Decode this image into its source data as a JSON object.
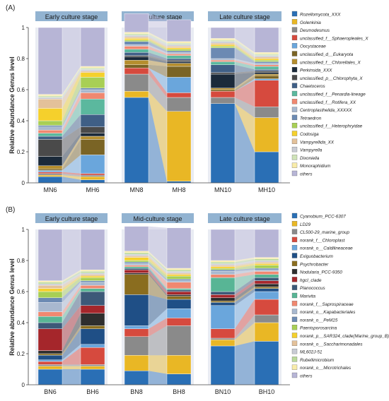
{
  "chart_data": [
    {
      "panel_label": "(A)",
      "type": "bar",
      "stacked": true,
      "ylabel": "Relative abundance Genus level",
      "ylim": [
        0,
        1
      ],
      "yticks": [
        "0",
        "0.2",
        "0.4",
        "0.6",
        "0.8",
        "1"
      ],
      "stages": [
        "Early culture stage",
        "Mid-culture stage",
        "Late culture stage"
      ],
      "categories": [
        "MN6",
        "MH6",
        "MN8",
        "MH8",
        "MN10",
        "MH10"
      ],
      "series": [
        {
          "name": "Rozellomycota_XXX",
          "color": "#2a6fb5",
          "values": [
            0.04,
            0.02,
            0.55,
            0.01,
            0.51,
            0.2
          ]
        },
        {
          "name": "Golenkinia",
          "color": "#e9b725",
          "values": [
            0.01,
            0.02,
            0.04,
            0.45,
            0.0,
            0.22
          ]
        },
        {
          "name": "Desmodesmus",
          "color": "#8a8a8a",
          "values": [
            0.01,
            0.01,
            0.11,
            0.09,
            0.04,
            0.07
          ]
        },
        {
          "name": "unclassified_f__Sphaeropleales_X",
          "color": "#d64a3e",
          "values": [
            0.01,
            0.01,
            0.04,
            0.03,
            0.04,
            0.17
          ]
        },
        {
          "name": "Oocystaceae",
          "color": "#6aa6dc",
          "values": [
            0.01,
            0.12,
            0.0,
            0.1,
            0.0,
            0.01
          ]
        },
        {
          "name": "unclassified_d__Eukaryota",
          "color": "#7a6425",
          "values": [
            0.01,
            0.1,
            0.02,
            0.07,
            0.01,
            0.02
          ]
        },
        {
          "name": "unclassified_f__Chlorellales_X",
          "color": "#b58e2e",
          "values": [
            0.02,
            0.02,
            0.03,
            0.02,
            0.01,
            0.01
          ]
        },
        {
          "name": "Perkinsida_XXX",
          "color": "#1b2a3a",
          "values": [
            0.06,
            0.02,
            0.02,
            0.01,
            0.09,
            0.01
          ]
        },
        {
          "name": "unclassified_p__Chlorophyta_X",
          "color": "#4a4a4a",
          "values": [
            0.11,
            0.04,
            0.01,
            0.01,
            0.01,
            0.01
          ]
        },
        {
          "name": "Chaetoceros",
          "color": "#3f5f86",
          "values": [
            0.02,
            0.08,
            0.02,
            0.01,
            0.05,
            0.01
          ]
        },
        {
          "name": "unclassified_f__Penardia-lineage",
          "color": "#5bb89e",
          "values": [
            0.02,
            0.1,
            0.02,
            0.02,
            0.02,
            0.02
          ]
        },
        {
          "name": "unclassified_f__Rotifera_XX",
          "color": "#f08870",
          "values": [
            0.02,
            0.04,
            0.02,
            0.01,
            0.01,
            0.01
          ]
        },
        {
          "name": "Centroplasthelida_XXXXX",
          "color": "#a8b8cf",
          "values": [
            0.02,
            0.02,
            0.01,
            0.01,
            0.01,
            0.01
          ]
        },
        {
          "name": "Tetraedron",
          "color": "#6c8ab3",
          "values": [
            0.01,
            0.01,
            0.02,
            0.01,
            0.07,
            0.01
          ]
        },
        {
          "name": "unclassified_f__Heterophryidae",
          "color": "#a8cf55",
          "values": [
            0.03,
            0.07,
            0.01,
            0.01,
            0.01,
            0.01
          ]
        },
        {
          "name": "Codosiga",
          "color": "#f5d02c",
          "values": [
            0.08,
            0.03,
            0.01,
            0.01,
            0.01,
            0.01
          ]
        },
        {
          "name": "Vampyrellida_XX",
          "color": "#e3c19a",
          "values": [
            0.06,
            0.01,
            0.01,
            0.01,
            0.01,
            0.01
          ]
        },
        {
          "name": "Vampyrella",
          "color": "#c8cbd4",
          "values": [
            0.01,
            0.01,
            0.01,
            0.01,
            0.01,
            0.01
          ]
        },
        {
          "name": "Dixoniella",
          "color": "#cfe3b8",
          "values": [
            0.01,
            0.01,
            0.01,
            0.01,
            0.01,
            0.01
          ]
        },
        {
          "name": "Monoraphidium",
          "color": "#f8ecaa",
          "values": [
            0.01,
            0.01,
            0.01,
            0.01,
            0.01,
            0.01
          ]
        },
        {
          "name": "others",
          "color": "#b7b5d6",
          "values": [
            0.43,
            0.25,
            0.12,
            0.14,
            0.07,
            0.16
          ]
        }
      ]
    },
    {
      "panel_label": "(B)",
      "type": "bar",
      "stacked": true,
      "ylabel": "Relative abundance Genus level",
      "ylim": [
        0,
        1
      ],
      "yticks": [
        "0",
        "0.2",
        "0.4",
        "0.6",
        "0.8",
        "1"
      ],
      "stages": [
        "Early culture stage",
        "Mid-culture stage",
        "Late culture stage"
      ],
      "categories": [
        "BN6",
        "BH6",
        "BN8",
        "BH8",
        "BN10",
        "BH10"
      ],
      "series": [
        {
          "name": "Cyanobium_PCC-6307",
          "color": "#2a6fb5",
          "values": [
            0.1,
            0.1,
            0.09,
            0.07,
            0.25,
            0.28
          ]
        },
        {
          "name": "LD29",
          "color": "#e9b725",
          "values": [
            0.02,
            0.02,
            0.1,
            0.12,
            0.04,
            0.12
          ]
        },
        {
          "name": "CL500-29_marine_group",
          "color": "#8a8a8a",
          "values": [
            0.01,
            0.01,
            0.12,
            0.19,
            0.01,
            0.05
          ]
        },
        {
          "name": "norank_f__Chloroplast",
          "color": "#d64a3e",
          "values": [
            0.02,
            0.11,
            0.05,
            0.05,
            0.06,
            0.1
          ]
        },
        {
          "name": "norank_o__Caldilineaceae",
          "color": "#6aa6dc",
          "values": [
            0.01,
            0.02,
            0.02,
            0.06,
            0.15,
            0.05
          ]
        },
        {
          "name": "Exiguobacterium",
          "color": "#1f4f86",
          "values": [
            0.03,
            0.1,
            0.2,
            0.06,
            0.02,
            0.02
          ]
        },
        {
          "name": "Psychrobacter",
          "color": "#8a6d1f",
          "values": [
            0.01,
            0.02,
            0.13,
            0.02,
            0.01,
            0.01
          ]
        },
        {
          "name": "Nodularia_PCC-9350",
          "color": "#2e2e2e",
          "values": [
            0.02,
            0.08,
            0.01,
            0.01,
            0.02,
            0.02
          ]
        },
        {
          "name": "hgcI_clade",
          "color": "#a5262b",
          "values": [
            0.14,
            0.05,
            0.02,
            0.02,
            0.02,
            0.02
          ]
        },
        {
          "name": "Planococcus",
          "color": "#3c5978",
          "values": [
            0.04,
            0.09,
            0.01,
            0.01,
            0.02,
            0.02
          ]
        },
        {
          "name": "Marivita",
          "color": "#58b595",
          "values": [
            0.04,
            0.02,
            0.01,
            0.01,
            0.09,
            0.02
          ]
        },
        {
          "name": "norank_f__Saprospiraceae",
          "color": "#f08870",
          "values": [
            0.03,
            0.02,
            0.01,
            0.04,
            0.02,
            0.02
          ]
        },
        {
          "name": "norank_o__Kapabacteriales",
          "color": "#a8b8cf",
          "values": [
            0.06,
            0.02,
            0.01,
            0.01,
            0.02,
            0.01
          ]
        },
        {
          "name": "norank_o__PeM15",
          "color": "#6c8ab3",
          "values": [
            0.03,
            0.01,
            0.01,
            0.01,
            0.01,
            0.01
          ]
        },
        {
          "name": "Paenisporosarcina",
          "color": "#a8cf55",
          "values": [
            0.04,
            0.02,
            0.01,
            0.02,
            0.01,
            0.02
          ]
        },
        {
          "name": "norank_p__SAR324_clade(Marine_group_B)",
          "color": "#f5d02c",
          "values": [
            0.02,
            0.01,
            0.02,
            0.01,
            0.01,
            0.01
          ]
        },
        {
          "name": "norank_o__Saccharimonadales",
          "color": "#e3c19a",
          "values": [
            0.02,
            0.01,
            0.01,
            0.01,
            0.01,
            0.01
          ]
        },
        {
          "name": "ML602J-51",
          "color": "#c8cbd4",
          "values": [
            0.01,
            0.01,
            0.01,
            0.01,
            0.01,
            0.01
          ]
        },
        {
          "name": "Rubellimicrobium",
          "color": "#b9d99a",
          "values": [
            0.01,
            0.01,
            0.01,
            0.01,
            0.01,
            0.01
          ]
        },
        {
          "name": "norank_o__Microtrichales",
          "color": "#f8ecaa",
          "values": [
            0.01,
            0.01,
            0.01,
            0.01,
            0.01,
            0.01
          ]
        },
        {
          "name": "others",
          "color": "#b7b5d6",
          "values": [
            0.33,
            0.26,
            0.16,
            0.26,
            0.2,
            0.18
          ]
        }
      ]
    }
  ]
}
